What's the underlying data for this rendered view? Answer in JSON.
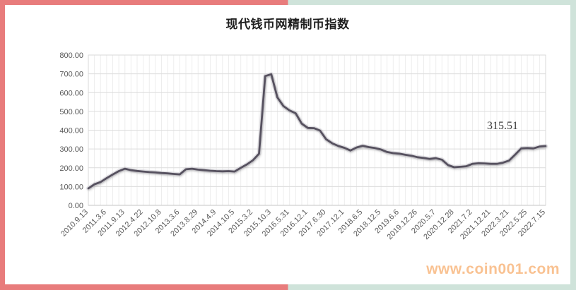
{
  "frame": {
    "left_color": "#e87c7c",
    "right_color": "#cfe3da"
  },
  "chart_data": {
    "type": "line",
    "title": "现代钱币网精制币指数",
    "xlabel": "",
    "ylabel": "",
    "ylim": [
      0,
      800
    ],
    "y_tick_step": 100,
    "y_tick_labels": [
      "800.00",
      "700.00",
      "600.00",
      "500.00",
      "400.00",
      "300.00",
      "200.00",
      "100.00",
      "0.00"
    ],
    "categories": [
      "2010.9.13",
      "2011.3.6",
      "2011.9.13",
      "2012.4.22",
      "2012.10.8",
      "2013.3.6",
      "2013.8.29",
      "2014.4.9",
      "2014.10.5",
      "2015.3.2",
      "2015.10.3",
      "2016.5.31",
      "2016.12.1",
      "2017.6.30",
      "2017.12.1",
      "2018.6.5",
      "2018.12.5",
      "2019.6.6",
      "2019.12.26",
      "2020.5.7",
      "2020.12.28",
      "2021.7.2",
      "2021.12.21",
      "2022.3.21",
      "2022.5.25",
      "2022.7.15"
    ],
    "points_per_category": 3,
    "values": [
      90,
      112,
      124,
      145,
      164,
      182,
      195,
      187,
      183,
      180,
      177,
      175,
      172,
      170,
      167,
      165,
      192,
      195,
      190,
      187,
      184,
      182,
      181,
      182,
      180,
      200,
      218,
      240,
      275,
      688,
      698,
      575,
      528,
      505,
      490,
      435,
      412,
      411,
      398,
      352,
      330,
      316,
      306,
      292,
      308,
      317,
      310,
      305,
      297,
      284,
      278,
      275,
      269,
      264,
      256,
      252,
      247,
      251,
      243,
      214,
      203,
      205,
      208,
      221,
      224,
      223,
      221,
      221,
      227,
      238,
      270,
      303,
      305,
      303,
      313,
      315.51
    ],
    "line_color": "#57515f",
    "grid": {
      "horizontal": true,
      "vertical": true
    },
    "legend": "none",
    "annotation": {
      "text": "315.51",
      "value": 315.51
    }
  },
  "watermark": {
    "text": "www.coin001.com",
    "color": "#f9c292"
  }
}
